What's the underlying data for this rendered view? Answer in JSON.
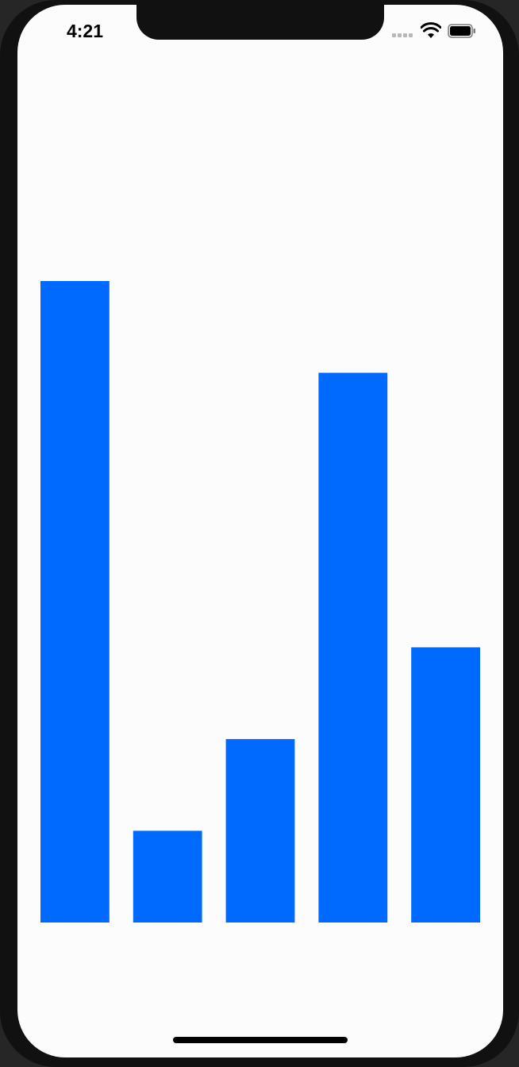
{
  "status_bar": {
    "time": "4:21",
    "icons": [
      "cellular-signal-icon",
      "wifi-icon",
      "battery-icon"
    ]
  },
  "chart_data": {
    "type": "bar",
    "categories": [
      "",
      "",
      "",
      "",
      ""
    ],
    "values": [
      100,
      14.3,
      28.6,
      85.7,
      42.9
    ],
    "bar_color": "#006aff",
    "ylim": [
      0,
      100
    ],
    "grid": false,
    "title": "",
    "xlabel": "",
    "ylabel": ""
  },
  "colors": {
    "accent": "#006aff",
    "background": "#fcfcfc",
    "device_frame": "#111111"
  }
}
